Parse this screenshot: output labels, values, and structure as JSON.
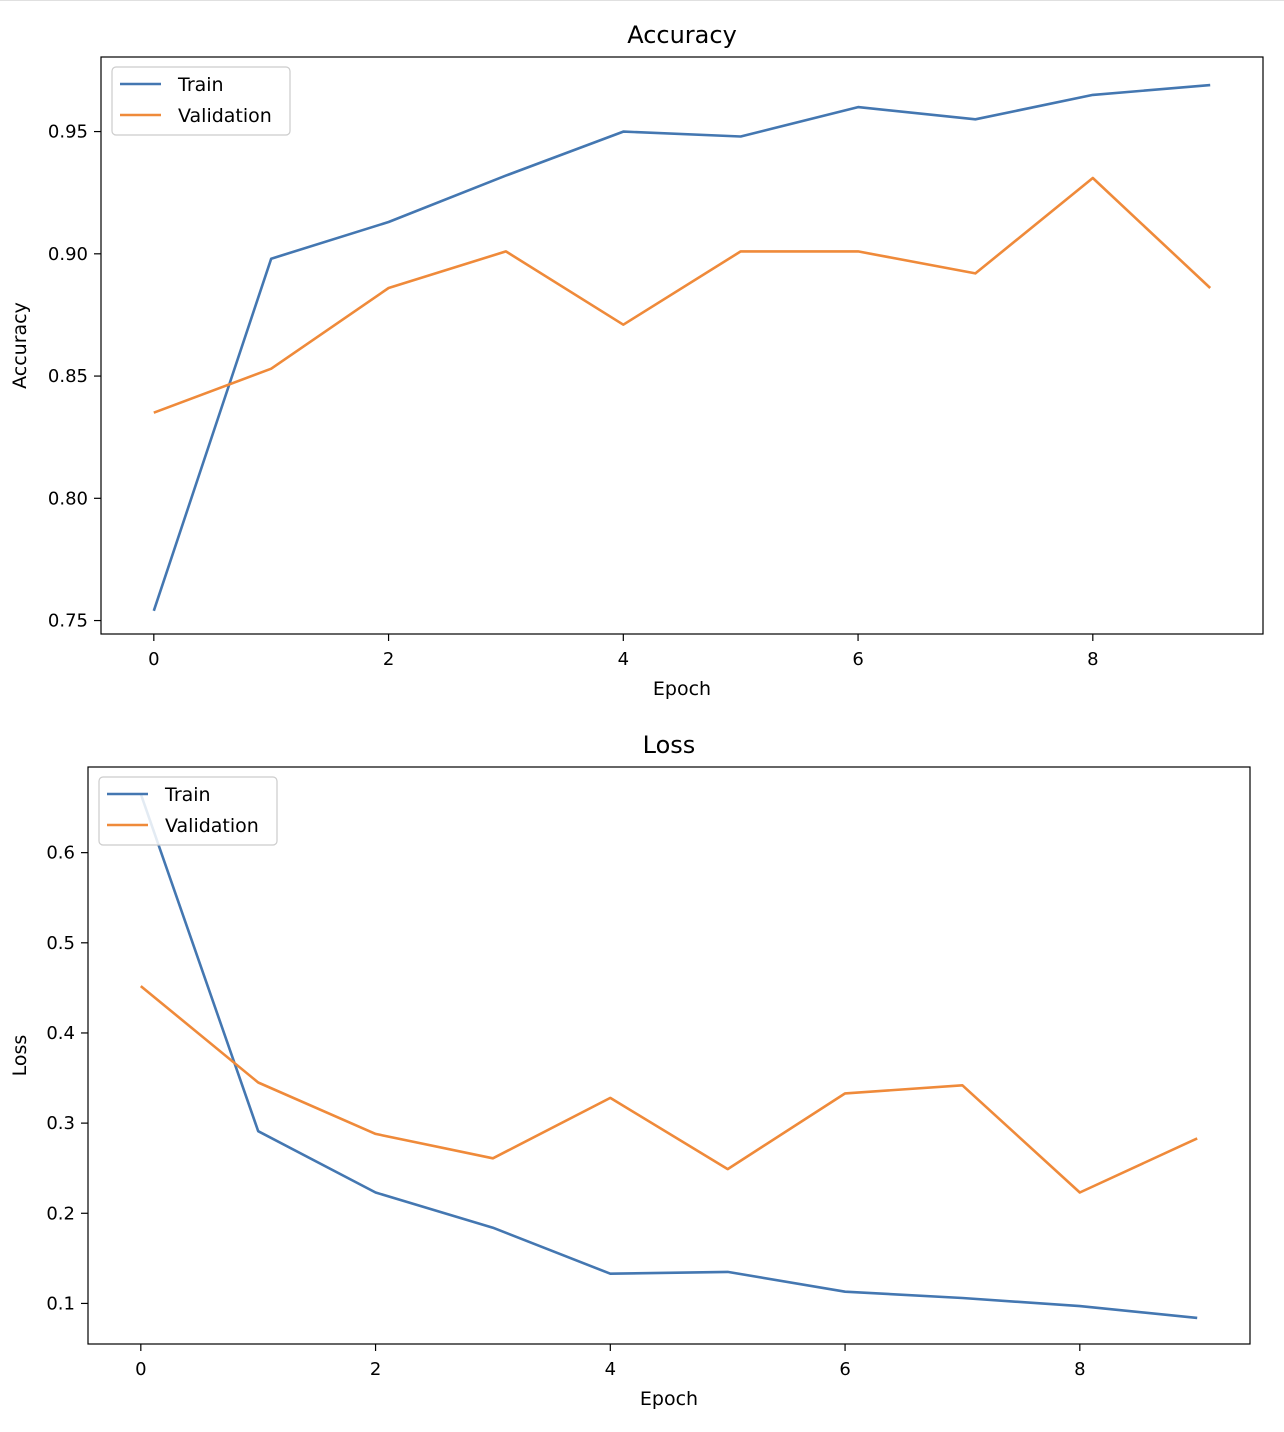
{
  "chart_data": [
    {
      "type": "line",
      "title": "Accuracy",
      "xlabel": "Epoch",
      "ylabel": "Accuracy",
      "x": [
        0,
        1,
        2,
        3,
        4,
        5,
        6,
        7,
        8,
        9
      ],
      "xticks": [
        "0",
        "2",
        "4",
        "6",
        "8"
      ],
      "xtick_values": [
        0,
        2,
        4,
        6,
        8
      ],
      "yticks": [
        "0.75",
        "0.80",
        "0.85",
        "0.90",
        "0.95"
      ],
      "ytick_values": [
        0.75,
        0.8,
        0.85,
        0.9,
        0.95
      ],
      "xlim": [
        -0.45,
        9.45
      ],
      "ylim": [
        0.7445,
        0.9805
      ],
      "grid": false,
      "legend_placement": "upper left",
      "series": [
        {
          "name": "Train",
          "color": "#4477b1",
          "values": [
            0.754,
            0.898,
            0.913,
            0.932,
            0.95,
            0.948,
            0.96,
            0.955,
            0.965,
            0.969
          ]
        },
        {
          "name": "Validation",
          "color": "#ef8a3a",
          "values": [
            0.835,
            0.853,
            0.886,
            0.901,
            0.871,
            0.901,
            0.901,
            0.892,
            0.931,
            0.886
          ]
        }
      ]
    },
    {
      "type": "line",
      "title": "Loss",
      "xlabel": "Epoch",
      "ylabel": "Loss",
      "x": [
        0,
        1,
        2,
        3,
        4,
        5,
        6,
        7,
        8,
        9
      ],
      "xticks": [
        "0",
        "2",
        "4",
        "6",
        "8"
      ],
      "xtick_values": [
        0,
        2,
        4,
        6,
        8
      ],
      "yticks": [
        "0.1",
        "0.2",
        "0.3",
        "0.4",
        "0.5",
        "0.6"
      ],
      "ytick_values": [
        0.1,
        0.2,
        0.3,
        0.4,
        0.5,
        0.6
      ],
      "xlim": [
        -0.45,
        9.45
      ],
      "ylim": [
        0.055,
        0.695
      ],
      "grid": false,
      "legend_placement": "upper left",
      "series": [
        {
          "name": "Train",
          "color": "#4477b1",
          "values": [
            0.665,
            0.291,
            0.223,
            0.184,
            0.133,
            0.135,
            0.113,
            0.106,
            0.097,
            0.084
          ]
        },
        {
          "name": "Validation",
          "color": "#ef8a3a",
          "values": [
            0.452,
            0.345,
            0.288,
            0.261,
            0.328,
            0.249,
            0.333,
            0.342,
            0.223,
            0.283
          ]
        }
      ]
    }
  ]
}
